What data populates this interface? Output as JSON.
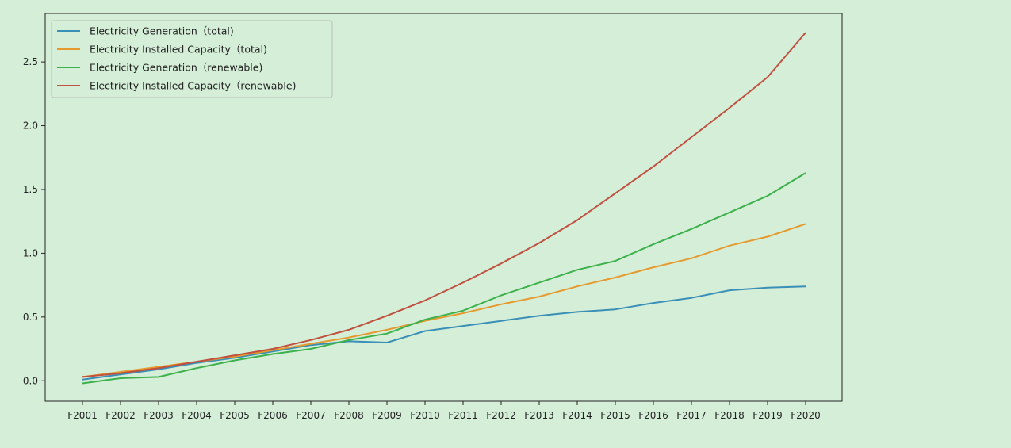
{
  "chart_data": {
    "type": "line",
    "title": "",
    "xlabel": "",
    "ylabel": "",
    "categories": [
      "F2001",
      "F2002",
      "F2003",
      "F2004",
      "F2005",
      "F2006",
      "F2007",
      "F2008",
      "F2009",
      "F2010",
      "F2011",
      "F2012",
      "F2013",
      "F2014",
      "F2015",
      "F2016",
      "F2017",
      "F2018",
      "F2019",
      "F2020"
    ],
    "ylim": [
      -0.16,
      2.88
    ],
    "yticks": [
      0.0,
      0.5,
      1.0,
      1.5,
      2.0,
      2.5
    ],
    "ytick_labels": [
      "0.0",
      "0.5",
      "1.0",
      "1.5",
      "2.0",
      "2.5"
    ],
    "grid": false,
    "legend_position": "top-left",
    "background_color": "#d5eed8",
    "series": [
      {
        "name": "Electricity Generation（total)",
        "color": "#3a8fb7",
        "values": [
          0.01,
          0.05,
          0.09,
          0.14,
          0.18,
          0.23,
          0.28,
          0.31,
          0.3,
          0.39,
          0.43,
          0.47,
          0.51,
          0.54,
          0.56,
          0.61,
          0.65,
          0.71,
          0.73,
          0.74
        ]
      },
      {
        "name": "Electricity Installed Capacity（total)",
        "color": "#e69a2e",
        "values": [
          0.03,
          0.07,
          0.11,
          0.15,
          0.19,
          0.24,
          0.29,
          0.34,
          0.4,
          0.47,
          0.53,
          0.6,
          0.66,
          0.74,
          0.81,
          0.89,
          0.96,
          1.06,
          1.13,
          1.23
        ]
      },
      {
        "name": "Electricity Generation（renewable)",
        "color": "#3cb04a",
        "values": [
          -0.02,
          0.02,
          0.03,
          0.1,
          0.16,
          0.21,
          0.25,
          0.32,
          0.37,
          0.48,
          0.55,
          0.67,
          0.77,
          0.87,
          0.94,
          1.07,
          1.19,
          1.32,
          1.45,
          1.63
        ]
      },
      {
        "name": "Electricity Installed Capacity（renewable)",
        "color": "#c0503f",
        "values": [
          0.03,
          0.06,
          0.1,
          0.15,
          0.2,
          0.25,
          0.32,
          0.4,
          0.51,
          0.63,
          0.77,
          0.92,
          1.08,
          1.26,
          1.47,
          1.68,
          1.91,
          2.14,
          2.38,
          2.73
        ]
      }
    ]
  }
}
